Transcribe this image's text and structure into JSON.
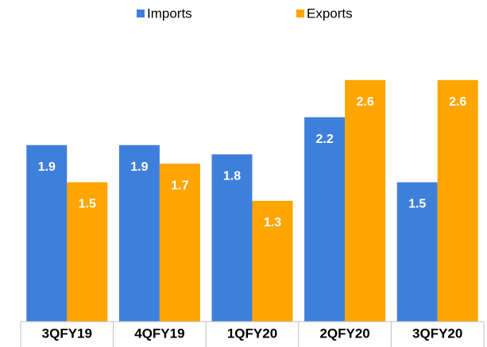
{
  "chart_data": {
    "type": "bar",
    "categories": [
      "3QFY19",
      "4QFY19",
      "1QFY20",
      "2QFY20",
      "3QFY20"
    ],
    "series": [
      {
        "name": "Imports",
        "color": "#3f7fdc",
        "values": [
          1.9,
          1.9,
          1.8,
          2.2,
          1.5
        ]
      },
      {
        "name": "Exports",
        "color": "#ffa500",
        "values": [
          1.5,
          1.7,
          1.3,
          2.6,
          2.6
        ]
      }
    ],
    "legend": "top"
  }
}
